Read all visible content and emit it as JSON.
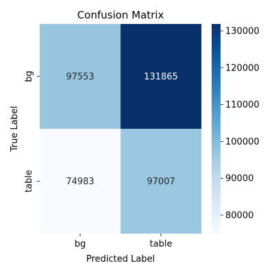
{
  "chart_data": {
    "type": "heatmap",
    "title": "Confusion Matrix",
    "xlabel": "Predicted Label",
    "ylabel": "True Label",
    "x_categories": [
      "bg",
      "table"
    ],
    "y_categories": [
      "bg",
      "table"
    ],
    "values": [
      [
        97553,
        131865
      ],
      [
        74983,
        97007
      ]
    ],
    "colormap": "Blues",
    "color_low": "#f7fbff",
    "color_high": "#08306b",
    "colorbar": {
      "range": [
        74983,
        131865
      ],
      "ticks": [
        80000,
        90000,
        100000,
        110000,
        120000,
        130000
      ]
    }
  }
}
